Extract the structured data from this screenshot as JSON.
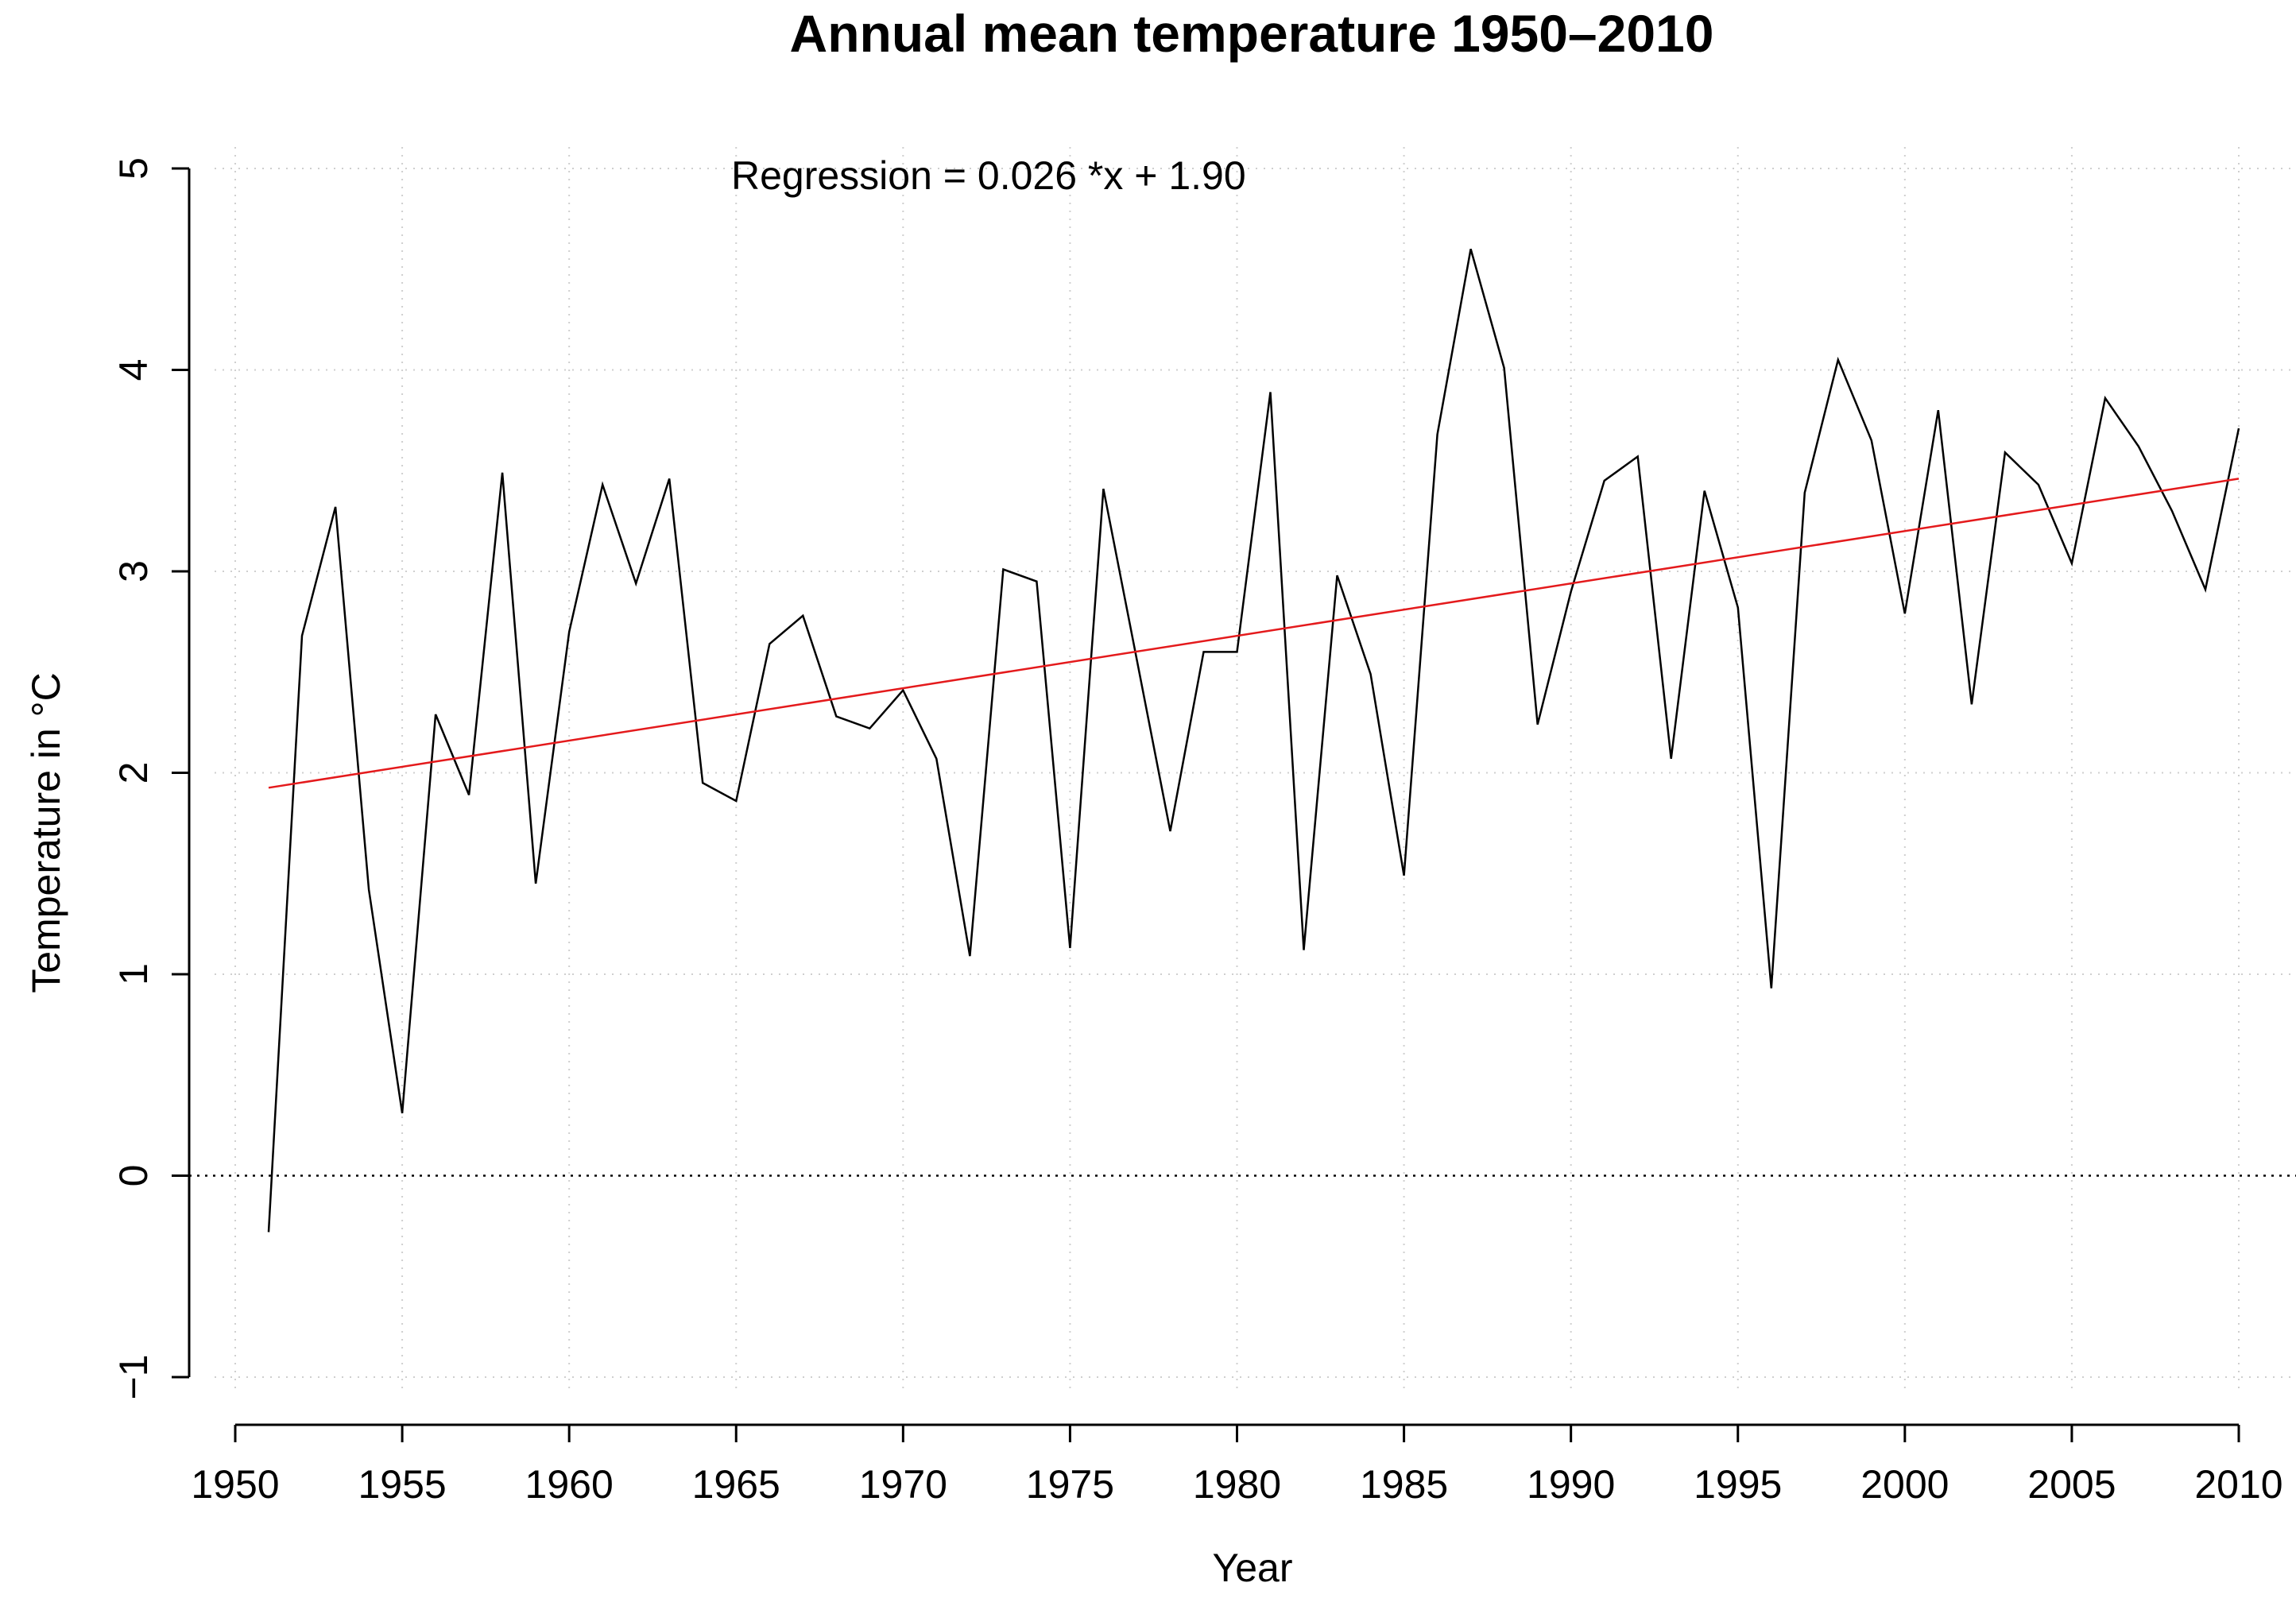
{
  "chart_data": {
    "type": "line",
    "title": "Annual mean temperature 1950–2010",
    "xlabel": "Year",
    "ylabel": "Temperature in °C",
    "xlim": [
      1950,
      2010
    ],
    "ylim": [
      -1,
      5
    ],
    "xticks": [
      1950,
      1955,
      1960,
      1965,
      1970,
      1975,
      1980,
      1985,
      1990,
      1995,
      2000,
      2005,
      2010
    ],
    "yticks": [
      -1,
      0,
      1,
      2,
      3,
      4,
      5
    ],
    "grid": true,
    "annotation": "Regression = 0.026 *x + 1.90",
    "x": [
      1951,
      1952,
      1953,
      1954,
      1955,
      1956,
      1957,
      1958,
      1959,
      1960,
      1961,
      1962,
      1963,
      1964,
      1965,
      1966,
      1967,
      1968,
      1969,
      1970,
      1971,
      1972,
      1973,
      1974,
      1975,
      1976,
      1977,
      1978,
      1979,
      1980,
      1981,
      1982,
      1983,
      1984,
      1985,
      1986,
      1987,
      1988,
      1989,
      1990,
      1991,
      1992,
      1993,
      1994,
      1995,
      1996,
      1997,
      1998,
      1999,
      2000,
      2001,
      2002,
      2003,
      2004,
      2005,
      2006,
      2007,
      2008,
      2009,
      2010
    ],
    "series": [
      {
        "name": "Annual mean temperature",
        "color": "#000000",
        "values": [
          -0.28,
          2.68,
          3.32,
          1.42,
          0.31,
          2.29,
          1.89,
          3.49,
          1.45,
          2.7,
          3.43,
          2.94,
          3.46,
          1.95,
          1.86,
          2.64,
          2.78,
          2.28,
          2.22,
          2.41,
          2.07,
          1.09,
          3.01,
          2.95,
          1.13,
          3.41,
          2.56,
          1.71,
          2.6,
          2.6,
          3.89,
          1.12,
          2.98,
          2.49,
          1.49,
          3.68,
          4.6,
          4.01,
          2.24,
          2.9,
          3.45,
          3.57,
          2.07,
          3.4,
          2.82,
          0.93,
          3.39,
          4.05,
          3.65,
          2.79,
          3.8,
          2.34,
          3.59,
          3.43,
          3.04,
          3.86,
          3.62,
          3.3,
          2.91,
          3.71
        ]
      },
      {
        "name": "Regression",
        "color": "#e41a1c",
        "x": [
          1951,
          2010
        ],
        "values": [
          1.926,
          3.46
        ]
      }
    ]
  }
}
